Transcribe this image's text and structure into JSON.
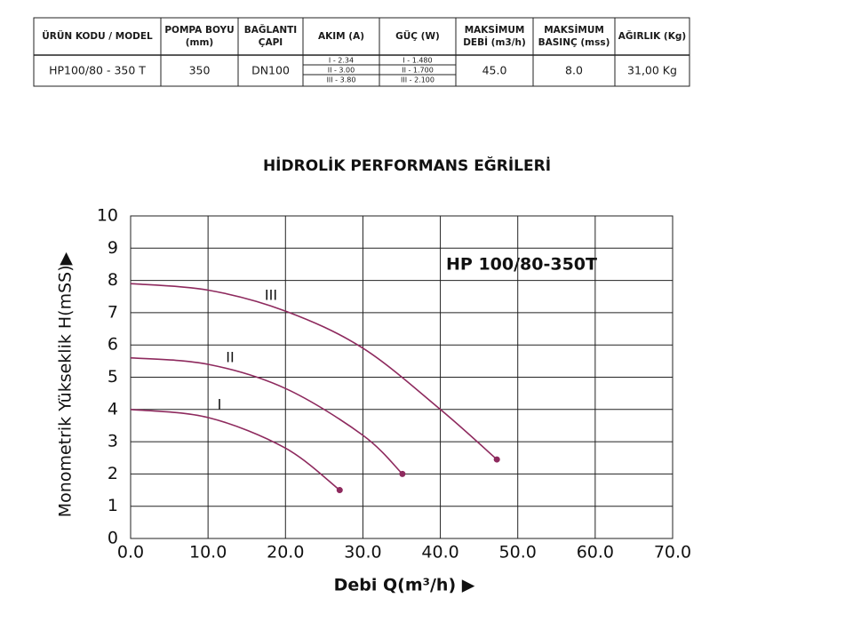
{
  "table": {
    "header": [
      [
        "ÜRÜN KODU / MODEL"
      ],
      [
        "POMPA BOYU",
        "(mm)"
      ],
      [
        "BAĞLANTI",
        "ÇAPI"
      ],
      [
        "AKIM (A)"
      ],
      [
        "GÜÇ (W)"
      ],
      [
        "MAKSİMUM",
        "DEBİ (m3/h)"
      ],
      [
        "MAKSİMUM",
        "BASINÇ (mss)"
      ],
      [
        "AĞIRLIK (Kg)"
      ]
    ],
    "row": [
      "HP100/80 - 350 T",
      "350",
      "DN100",
      [
        "I - 2.34",
        "II - 3.00",
        "III - 3.80"
      ],
      [
        "I - 1.480",
        "II - 1.700",
        "III - 2.100"
      ],
      "45.0",
      "8.0",
      "31,00 Kg"
    ]
  },
  "chart_data": {
    "type": "line",
    "title": "HİDROLİK PERFORMANS EĞRİLERİ",
    "annotation": "HP 100/80-350T",
    "x_label": "Debi Q(m³/h) ▶",
    "y_label": "Monometrik Yükseklik H(mSS)▶",
    "xlim": [
      0,
      70
    ],
    "ylim": [
      0,
      10
    ],
    "xticks": [
      {
        "value": 0,
        "label": "0.0"
      },
      {
        "value": 10,
        "label": "10.0"
      },
      {
        "value": 20,
        "label": "20.0"
      },
      {
        "value": 30,
        "label": "30.0"
      },
      {
        "value": 40,
        "label": "40.0"
      },
      {
        "value": 50,
        "label": "50.0"
      },
      {
        "value": 60,
        "label": "60.0"
      },
      {
        "value": 70,
        "label": "70.0"
      }
    ],
    "yticks": [
      0,
      1,
      2,
      3,
      4,
      5,
      6,
      7,
      8,
      9,
      10
    ],
    "grid": true,
    "series": [
      {
        "name": "I",
        "color": "#8e2a5e",
        "x": [
          0,
          10,
          20,
          27
        ],
        "values": [
          4.0,
          3.75,
          2.8,
          1.5
        ]
      },
      {
        "name": "II",
        "color": "#8e2a5e",
        "x": [
          0,
          10,
          20,
          30,
          35.1
        ],
        "values": [
          5.6,
          5.4,
          4.65,
          3.2,
          2.0
        ]
      },
      {
        "name": "III",
        "color": "#8e2a5e",
        "x": [
          0,
          10,
          20,
          30,
          40,
          47.3
        ],
        "values": [
          7.9,
          7.7,
          7.05,
          5.9,
          4.0,
          2.45
        ]
      }
    ]
  }
}
